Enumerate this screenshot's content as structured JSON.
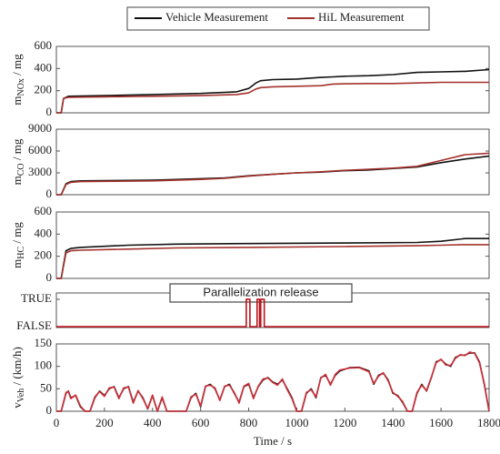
{
  "chart_data": [
    {
      "type": "line",
      "ylabel": {
        "main": "m",
        "sub": "NOx",
        "unit": " / mg"
      },
      "x": [
        0,
        20,
        30,
        50,
        200,
        400,
        600,
        750,
        800,
        830,
        850,
        900,
        1000,
        1100,
        1150,
        1200,
        1300,
        1400,
        1500,
        1600,
        1700,
        1800
      ],
      "series": [
        {
          "name": "Vehicle Measurement",
          "color": "#111111",
          "values": [
            0,
            0,
            130,
            150,
            155,
            165,
            175,
            190,
            220,
            270,
            290,
            300,
            305,
            320,
            325,
            330,
            335,
            345,
            365,
            370,
            375,
            390
          ]
        },
        {
          "name": "HiL Measurement",
          "color": "#a3322c",
          "values": [
            0,
            0,
            130,
            140,
            145,
            150,
            155,
            165,
            180,
            215,
            228,
            235,
            240,
            245,
            260,
            262,
            265,
            265,
            270,
            275,
            275,
            275
          ]
        }
      ],
      "xlim": [
        0,
        1800
      ],
      "ylim": [
        0,
        600
      ],
      "yticks": [
        0,
        200,
        400,
        600
      ]
    },
    {
      "type": "line",
      "ylabel": {
        "main": "m",
        "sub": "CO",
        "unit": " / mg"
      },
      "x": [
        0,
        20,
        40,
        60,
        100,
        400,
        600,
        700,
        800,
        900,
        1000,
        1100,
        1200,
        1300,
        1400,
        1500,
        1600,
        1700,
        1800
      ],
      "series": [
        {
          "color": "#111111",
          "values": [
            0,
            0,
            1500,
            1800,
            1900,
            2000,
            2200,
            2300,
            2600,
            2800,
            3000,
            3100,
            3300,
            3400,
            3600,
            3800,
            4400,
            4900,
            5300
          ]
        },
        {
          "color": "#a3322c",
          "values": [
            0,
            0,
            1400,
            1700,
            1800,
            1900,
            2100,
            2250,
            2550,
            2800,
            3000,
            3150,
            3350,
            3500,
            3650,
            3900,
            4700,
            5500,
            5700
          ]
        }
      ],
      "xlim": [
        0,
        1800
      ],
      "ylim": [
        0,
        9000
      ],
      "yticks": [
        0,
        3000,
        6000,
        9000
      ]
    },
    {
      "type": "line",
      "ylabel": {
        "main": "m",
        "sub": "HC",
        "unit": " / mg"
      },
      "x": [
        0,
        20,
        40,
        60,
        100,
        300,
        500,
        800,
        1200,
        1500,
        1600,
        1700,
        1800
      ],
      "series": [
        {
          "color": "#111111",
          "values": [
            0,
            0,
            250,
            270,
            280,
            300,
            310,
            315,
            320,
            325,
            335,
            360,
            360
          ]
        },
        {
          "color": "#a3322c",
          "values": [
            0,
            0,
            230,
            250,
            255,
            265,
            275,
            280,
            288,
            295,
            300,
            305,
            305
          ]
        }
      ],
      "xlim": [
        0,
        1800
      ],
      "ylim": [
        0,
        600
      ],
      "yticks": [
        0,
        200,
        400,
        600
      ]
    },
    {
      "type": "line",
      "annotation": "Parallelization release",
      "x": [
        0,
        790,
        790,
        805,
        805,
        835,
        835,
        845,
        845,
        850,
        850,
        865,
        865,
        1800
      ],
      "series": [
        {
          "color": "#b8141c",
          "values": [
            0,
            0,
            1,
            1,
            0,
            0,
            1,
            1,
            0,
            0,
            1,
            1,
            0,
            0
          ]
        }
      ],
      "xlim": [
        0,
        1800
      ],
      "ylim": [
        -0.03,
        1.23
      ],
      "yticks": [
        {
          "value": 1,
          "label": "TRUE"
        },
        {
          "value": 0,
          "label": "FALSE"
        }
      ]
    },
    {
      "type": "line",
      "ylabel": {
        "main": "v",
        "sub": "Veh",
        "unit": " / (km/h)"
      },
      "xlabel": "Time / s",
      "x": [
        0,
        20,
        40,
        50,
        60,
        80,
        100,
        120,
        140,
        160,
        180,
        200,
        220,
        240,
        260,
        280,
        300,
        320,
        340,
        360,
        380,
        400,
        420,
        440,
        460,
        540,
        560,
        580,
        600,
        620,
        640,
        660,
        680,
        700,
        720,
        740,
        760,
        780,
        800,
        820,
        840,
        860,
        880,
        900,
        920,
        940,
        960,
        980,
        1000,
        1020,
        1040,
        1060,
        1080,
        1100,
        1120,
        1140,
        1160,
        1180,
        1220,
        1260,
        1300,
        1320,
        1340,
        1360,
        1380,
        1400,
        1420,
        1440,
        1460,
        1480,
        1500,
        1520,
        1540,
        1560,
        1580,
        1600,
        1620,
        1640,
        1660,
        1680,
        1700,
        1720,
        1740,
        1760,
        1780,
        1800
      ],
      "series": [
        {
          "color": "#111111",
          "values": [
            0,
            0,
            40,
            45,
            30,
            35,
            10,
            0,
            0,
            30,
            45,
            35,
            50,
            55,
            30,
            50,
            55,
            20,
            45,
            30,
            5,
            35,
            0,
            30,
            0,
            0,
            30,
            40,
            10,
            55,
            60,
            50,
            25,
            55,
            60,
            40,
            20,
            55,
            60,
            30,
            55,
            70,
            75,
            65,
            60,
            70,
            50,
            30,
            0,
            0,
            40,
            50,
            30,
            75,
            80,
            60,
            80,
            90,
            97,
            98,
            90,
            60,
            80,
            85,
            70,
            40,
            35,
            20,
            0,
            0,
            40,
            60,
            45,
            75,
            110,
            115,
            105,
            100,
            120,
            125,
            125,
            130,
            130,
            110,
            60,
            0
          ]
        },
        {
          "color": "#d0303a",
          "values": [
            0,
            0,
            42,
            44,
            28,
            36,
            12,
            0,
            0,
            32,
            44,
            33,
            52,
            54,
            28,
            52,
            54,
            18,
            46,
            28,
            6,
            36,
            0,
            32,
            0,
            0,
            32,
            38,
            12,
            56,
            58,
            52,
            24,
            56,
            58,
            42,
            18,
            56,
            62,
            28,
            56,
            72,
            74,
            64,
            58,
            72,
            48,
            28,
            0,
            0,
            42,
            48,
            32,
            74,
            82,
            58,
            82,
            92,
            96,
            97,
            88,
            62,
            78,
            86,
            68,
            42,
            33,
            22,
            0,
            0,
            42,
            58,
            46,
            76,
            108,
            116,
            103,
            102,
            118,
            126,
            124,
            132,
            129,
            108,
            62,
            0
          ]
        }
      ],
      "xlim": [
        0,
        1800
      ],
      "ylim": [
        0,
        150
      ],
      "yticks": [
        0,
        50,
        100,
        150
      ],
      "xticks": [
        0,
        200,
        400,
        600,
        800,
        1000,
        1200,
        1400,
        1600,
        1800
      ]
    }
  ]
}
